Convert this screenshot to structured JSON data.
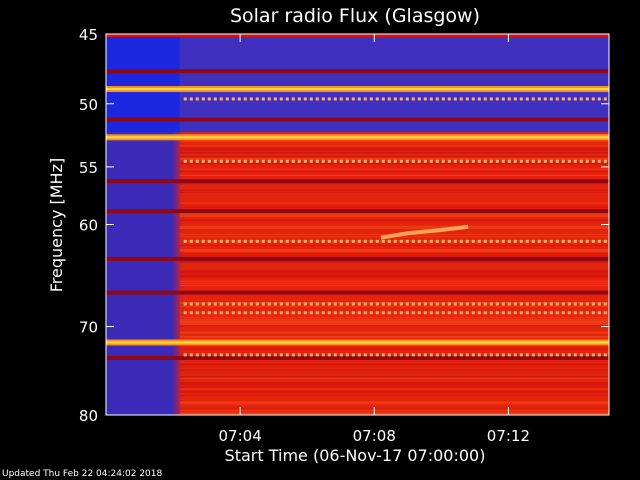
{
  "chart_data": {
    "type": "heatmap",
    "title": "Solar radio Flux (Glasgow)",
    "xlabel": "Start Time (06-Nov-17 07:00:00)",
    "ylabel": "Frequency [MHz]",
    "x_unit": "minutes after 07:00",
    "xlim": [
      0,
      15
    ],
    "ylim": [
      45,
      80
    ],
    "x_ticks": [
      {
        "value": 4,
        "label": "07:04"
      },
      {
        "value": 8,
        "label": "07:08"
      },
      {
        "value": 12,
        "label": "07:12"
      }
    ],
    "y_ticks": [
      {
        "value": 45,
        "label": "45"
      },
      {
        "value": 50,
        "label": "50"
      },
      {
        "value": 55,
        "label": "55"
      },
      {
        "value": 60,
        "label": "60"
      },
      {
        "value": 70,
        "label": "70"
      },
      {
        "value": 80,
        "label": "80"
      }
    ],
    "y_scale": "log",
    "background_onset_minutes": 2.2,
    "colors": {
      "background_before_onset": "#3c2ab8",
      "quiet_band_before_onset": "#1c28e0",
      "background_after_onset": "#e8200c",
      "bright_emission": "#ffe040",
      "dark_band": "#900818"
    },
    "bright_bands_mhz": [
      48.9,
      52.6,
      71.7
    ],
    "dark_bands_mhz": [
      47.6,
      63.2,
      56.2,
      58.8,
      66.5,
      73.4,
      51.2
    ],
    "burst": {
      "times_minutes": [
        8.2,
        9.0,
        10.0,
        10.8
      ],
      "freqs_mhz": [
        61.2,
        60.8,
        60.5,
        60.2
      ]
    }
  },
  "footer": "Updated Thu Feb 22 04:24:02 2018"
}
